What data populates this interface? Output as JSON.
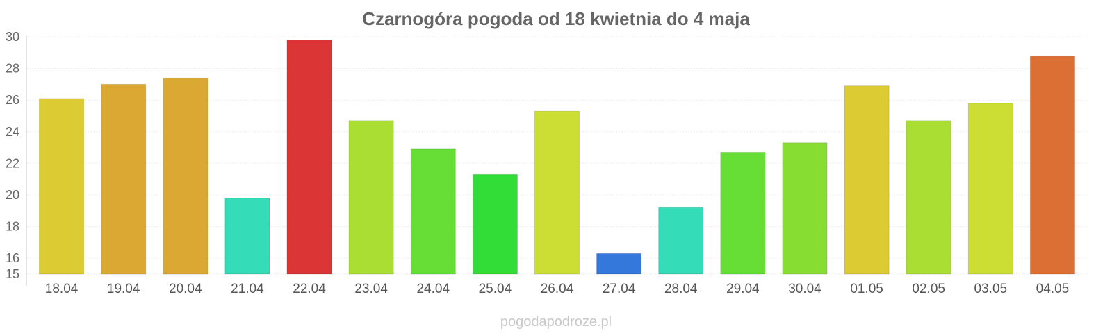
{
  "chart_data": {
    "type": "bar",
    "title": "Czarnogóra pogoda od 18 kwietnia do 4 maja",
    "xlabel": "",
    "ylabel": "",
    "ylim": [
      15,
      30
    ],
    "yticks": [
      15,
      16,
      18,
      20,
      22,
      24,
      26,
      28,
      30
    ],
    "grid": true,
    "categories": [
      "18.04",
      "19.04",
      "20.04",
      "21.04",
      "22.04",
      "23.04",
      "24.04",
      "25.04",
      "26.04",
      "27.04",
      "28.04",
      "29.04",
      "30.04",
      "01.05",
      "02.05",
      "03.05",
      "04.05"
    ],
    "values": [
      26.1,
      27.0,
      27.4,
      19.8,
      29.8,
      24.7,
      22.9,
      21.3,
      25.3,
      16.3,
      19.2,
      22.7,
      23.3,
      26.9,
      24.7,
      25.8,
      28.8
    ],
    "colors": [
      "#dccb33",
      "#dba833",
      "#dba833",
      "#35dcb8",
      "#db3535",
      "#aade33",
      "#66de35",
      "#33dd37",
      "#ccdd33",
      "#3578dc",
      "#35dcb8",
      "#66de35",
      "#88dd33",
      "#dccb33",
      "#aade33",
      "#ccdd33",
      "#dc6f33"
    ]
  },
  "watermark": "pogodapodroze.pl"
}
